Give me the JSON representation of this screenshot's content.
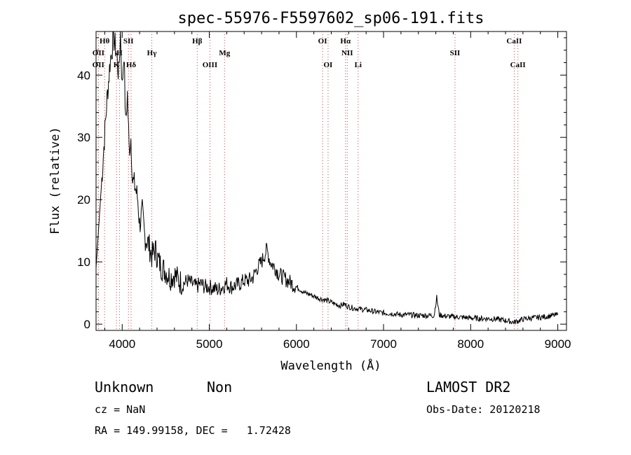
{
  "chart_data": {
    "type": "line",
    "title": "spec-55976-F5597602_sp06-191.fits",
    "xlabel": "Wavelength (Å)",
    "ylabel": "Flux (relative)",
    "xlim": [
      3700,
      9100
    ],
    "ylim": [
      -1,
      47
    ],
    "x_ticks": [
      4000,
      5000,
      6000,
      7000,
      8000,
      9000
    ],
    "y_ticks": [
      0,
      10,
      20,
      30,
      40
    ],
    "grid": false,
    "series": [
      {
        "x": [
          3700,
          3760,
          3820,
          3860,
          3880,
          3900,
          3930,
          3960,
          3980,
          4000,
          4020,
          4040,
          4060,
          4080,
          4100,
          4120,
          4150,
          4180,
          4200,
          4230,
          4260,
          4300,
          4340,
          4380,
          4420,
          4460,
          4500,
          4550,
          4600,
          4650,
          4700,
          4750,
          4800,
          4850,
          4900,
          4950,
          5000,
          5050,
          5100,
          5150,
          5200,
          5250,
          5300,
          5350,
          5400,
          5450,
          5500,
          5550,
          5600,
          5630,
          5660,
          5680,
          5700,
          5730,
          5760,
          5800,
          5850,
          5900,
          5950,
          6000,
          6050,
          6100,
          6150,
          6200,
          6250,
          6300,
          6350,
          6400,
          6450,
          6500,
          6550,
          6600,
          6650,
          6700,
          6800,
          6900,
          7000,
          7100,
          7200,
          7300,
          7400,
          7500,
          7580,
          7610,
          7640,
          7700,
          7800,
          7900,
          8000,
          8100,
          8200,
          8300,
          8400,
          8500,
          8600,
          8700,
          8800,
          8900,
          9000
        ],
        "y": [
          9,
          22,
          35,
          42,
          44,
          46,
          44,
          40,
          47,
          38,
          44,
          32,
          37,
          28,
          30,
          23,
          22,
          20,
          16,
          18,
          14,
          13,
          11,
          12,
          10,
          9,
          8.5,
          7.5,
          8,
          7,
          6.5,
          7,
          6.5,
          6,
          6.5,
          6,
          6,
          5.8,
          5.5,
          6,
          6.5,
          6,
          6.2,
          6.5,
          7,
          7,
          7.5,
          9,
          10,
          11,
          12,
          11,
          10,
          9.5,
          9,
          8,
          7.5,
          7,
          6.5,
          6,
          5.5,
          5,
          4.8,
          4.5,
          4.2,
          4,
          3.8,
          3.5,
          3.2,
          3,
          3.2,
          2.8,
          2.6,
          2.5,
          2.3,
          2,
          1.8,
          1.7,
          1.5,
          1.5,
          1.4,
          1.4,
          1.4,
          4.3,
          1.5,
          1.3,
          1.2,
          1.1,
          1,
          0.9,
          0.9,
          0.8,
          0.6,
          0.3,
          0.8,
          1,
          1.1,
          1.3,
          1.5
        ]
      }
    ],
    "line_markers": [
      {
        "x": 3798,
        "labels": [
          "Hθ"
        ],
        "row": 1
      },
      {
        "x": 3727,
        "labels": [
          "OII"
        ],
        "row": 2
      },
      {
        "x": 3726,
        "labels": [
          "OII"
        ],
        "row": 3
      },
      {
        "x": 3934,
        "labels": [
          "K"
        ],
        "row": 3
      },
      {
        "x": 3969,
        "labels": [
          "H"
        ],
        "row": 2
      },
      {
        "x": 4072,
        "labels": [
          "SII"
        ],
        "row": 1
      },
      {
        "x": 4102,
        "labels": [
          "Hδ"
        ],
        "row": 3
      },
      {
        "x": 4340,
        "labels": [
          "Hγ"
        ],
        "row": 2
      },
      {
        "x": 4861,
        "labels": [
          "Hβ"
        ],
        "row": 1
      },
      {
        "x": 5007,
        "labels": [
          "OIII"
        ],
        "row": 3
      },
      {
        "x": 5175,
        "labels": [
          "Mg"
        ],
        "row": 2
      },
      {
        "x": 6300,
        "labels": [
          "OI"
        ],
        "row": 1
      },
      {
        "x": 6363,
        "labels": [
          "OI"
        ],
        "row": 3
      },
      {
        "x": 6563,
        "labels": [
          "Hα"
        ],
        "row": 1
      },
      {
        "x": 6583,
        "labels": [
          "NII"
        ],
        "row": 2
      },
      {
        "x": 6708,
        "labels": [
          "Li"
        ],
        "row": 3
      },
      {
        "x": 7820,
        "labels": [
          "SII"
        ],
        "row": 2
      },
      {
        "x": 8500,
        "labels": [
          "CaII"
        ],
        "row": 1
      },
      {
        "x": 8542,
        "labels": [
          "CaII"
        ],
        "row": 3
      }
    ]
  },
  "info": {
    "class": "Unknown",
    "subclass": "Non",
    "survey": "LAMOST DR2",
    "cz": "cz = NaN",
    "obs_date": "Obs-Date: 20120218",
    "radec": "RA = 149.99158, DEC =   1.72428"
  }
}
